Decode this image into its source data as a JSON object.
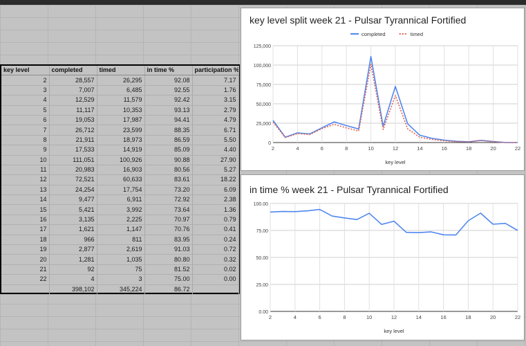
{
  "table": {
    "headers": [
      "key level",
      "completed",
      "timed",
      "in time %",
      "participation %"
    ],
    "rows": [
      [
        "2",
        "28,557",
        "26,295",
        "92.08",
        "7.17"
      ],
      [
        "3",
        "7,007",
        "6,485",
        "92.55",
        "1.76"
      ],
      [
        "4",
        "12,529",
        "11,579",
        "92.42",
        "3.15"
      ],
      [
        "5",
        "11,117",
        "10,353",
        "93.13",
        "2.79"
      ],
      [
        "6",
        "19,053",
        "17,987",
        "94.41",
        "4.79"
      ],
      [
        "7",
        "26,712",
        "23,599",
        "88.35",
        "6.71"
      ],
      [
        "8",
        "21,911",
        "18,973",
        "86.59",
        "5.50"
      ],
      [
        "9",
        "17,533",
        "14,919",
        "85.09",
        "4.40"
      ],
      [
        "10",
        "111,051",
        "100,926",
        "90.88",
        "27.90"
      ],
      [
        "11",
        "20,983",
        "16,903",
        "80.56",
        "5.27"
      ],
      [
        "12",
        "72,521",
        "60,633",
        "83.61",
        "18.22"
      ],
      [
        "13",
        "24,254",
        "17,754",
        "73.20",
        "6.09"
      ],
      [
        "14",
        "9,477",
        "6,911",
        "72.92",
        "2.38"
      ],
      [
        "15",
        "5,421",
        "3,992",
        "73.64",
        "1.36"
      ],
      [
        "16",
        "3,135",
        "2,225",
        "70.97",
        "0.79"
      ],
      [
        "17",
        "1,621",
        "1,147",
        "70.76",
        "0.41"
      ],
      [
        "18",
        "966",
        "811",
        "83.95",
        "0.24"
      ],
      [
        "19",
        "2,877",
        "2,619",
        "91.03",
        "0.72"
      ],
      [
        "20",
        "1,281",
        "1,035",
        "80.80",
        "0.32"
      ],
      [
        "21",
        "92",
        "75",
        "81.52",
        "0.02"
      ],
      [
        "22",
        "4",
        "3",
        "75.00",
        "0.00"
      ],
      [
        "",
        "398,102",
        "345,224",
        "86.72",
        ""
      ]
    ]
  },
  "chart_data": [
    {
      "type": "line",
      "title": "key level split week 21 - Pulsar Tyrannical Fortified",
      "xlabel": "key level",
      "ylabel": "",
      "x": [
        2,
        3,
        4,
        5,
        6,
        7,
        8,
        9,
        10,
        11,
        12,
        13,
        14,
        15,
        16,
        17,
        18,
        19,
        20,
        21,
        22
      ],
      "xticks": [
        2,
        4,
        6,
        8,
        10,
        12,
        14,
        16,
        18,
        20,
        22
      ],
      "yticks": [
        "0",
        "25,000",
        "50,000",
        "75,000",
        "100,000",
        "125,000"
      ],
      "ylim": [
        0,
        125000
      ],
      "xlim": [
        2,
        22
      ],
      "legend_position": "top",
      "series": [
        {
          "name": "completed",
          "color": "#4f87ef",
          "style": "solid",
          "values": [
            28557,
            7007,
            12529,
            11117,
            19053,
            26712,
            21911,
            17533,
            111051,
            20983,
            72521,
            24254,
            9477,
            5421,
            3135,
            1621,
            966,
            2877,
            1281,
            92,
            4
          ]
        },
        {
          "name": "timed",
          "color": "#e06050",
          "style": "dotted",
          "values": [
            26295,
            6485,
            11579,
            10353,
            17987,
            23599,
            18973,
            14919,
            100926,
            16903,
            60633,
            17754,
            6911,
            3992,
            2225,
            1147,
            811,
            2619,
            1035,
            75,
            3
          ]
        }
      ]
    },
    {
      "type": "line",
      "title": "in time % week 21 - Pulsar Tyrannical Fortified",
      "xlabel": "key level",
      "ylabel": "",
      "x": [
        2,
        3,
        4,
        5,
        6,
        7,
        8,
        9,
        10,
        11,
        12,
        13,
        14,
        15,
        16,
        17,
        18,
        19,
        20,
        21,
        22
      ],
      "xticks": [
        2,
        4,
        6,
        8,
        10,
        12,
        14,
        16,
        18,
        20,
        22
      ],
      "yticks": [
        "0.00",
        "25.00",
        "50.00",
        "75.00",
        "100.00"
      ],
      "ylim": [
        0,
        100
      ],
      "xlim": [
        2,
        22
      ],
      "series": [
        {
          "color": "#4f87ef",
          "style": "solid",
          "values": [
            92.08,
            92.55,
            92.42,
            93.13,
            94.41,
            88.35,
            86.59,
            85.09,
            90.88,
            80.56,
            83.61,
            73.2,
            72.92,
            73.64,
            70.97,
            70.76,
            83.95,
            91.03,
            80.8,
            81.52,
            75.0
          ]
        }
      ]
    }
  ]
}
